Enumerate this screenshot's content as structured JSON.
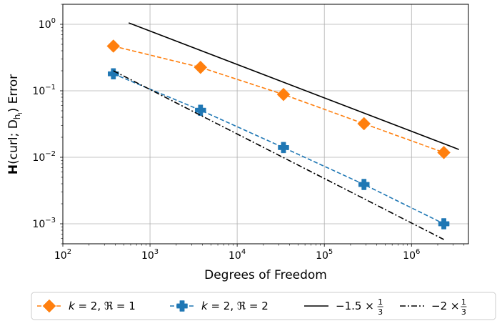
{
  "chart_data": {
    "type": "line",
    "title": "",
    "xlabel": "Degrees of Freedom",
    "ylabel_bold": "H",
    "ylabel_main": "(curl; D",
    "ylabel_sub": "h",
    "ylabel_subsub": "l",
    "ylabel_tail": ") Error",
    "xscale": "log",
    "yscale": "log",
    "xlim": [
      100,
      4500000
    ],
    "ylim": [
      0.0005,
      2.0
    ],
    "grid": true,
    "legend_position": "bottom (below plot, single row)",
    "x_ticks": [
      {
        "base": "10",
        "exp": "2"
      },
      {
        "base": "10",
        "exp": "3"
      },
      {
        "base": "10",
        "exp": "4"
      },
      {
        "base": "10",
        "exp": "5"
      },
      {
        "base": "10",
        "exp": "6"
      }
    ],
    "y_ticks": [
      {
        "base": "10",
        "exp": "0"
      },
      {
        "base": "10",
        "exp": "−1"
      },
      {
        "base": "10",
        "exp": "−2"
      },
      {
        "base": "10",
        "exp": "−3"
      }
    ],
    "series": [
      {
        "name": "k = 2, ℜ = 1",
        "label_k": "k",
        "label_k_value": " = 2, ",
        "label_r": "ℜ",
        "label_r_value": " = 1",
        "color": "#ff7f0e",
        "marker": "diamond",
        "linestyle": "dashed",
        "x": [
          380,
          3800,
          34000,
          285000,
          2350000
        ],
        "y": [
          0.47,
          0.225,
          0.088,
          0.032,
          0.0118
        ]
      },
      {
        "name": "k = 2, ℜ = 2",
        "label_k": "k",
        "label_k_value": " = 2, ",
        "label_r": "ℜ",
        "label_r_value": " = 2",
        "color": "#1f77b4",
        "marker": "plus",
        "linestyle": "dashed",
        "x": [
          380,
          3800,
          34000,
          285000,
          2350000
        ],
        "y": [
          0.18,
          0.051,
          0.014,
          0.0039,
          0.001
        ]
      },
      {
        "name": "−1.5 × 1/3",
        "label_prefix": "−1.5 ×",
        "label_num": "1",
        "label_den": "3",
        "color": "#000000",
        "marker": "none",
        "linestyle": "solid",
        "x": [
          570,
          3500000
        ],
        "y": [
          1.05,
          0.0131
        ]
      },
      {
        "name": "−2 × 1/3",
        "label_prefix": "−2 ×",
        "label_num": "1",
        "label_den": "3",
        "color": "#000000",
        "marker": "none",
        "linestyle": "dashdot",
        "x": [
          380,
          2350000
        ],
        "y": [
          0.2,
          0.00058
        ]
      }
    ]
  }
}
